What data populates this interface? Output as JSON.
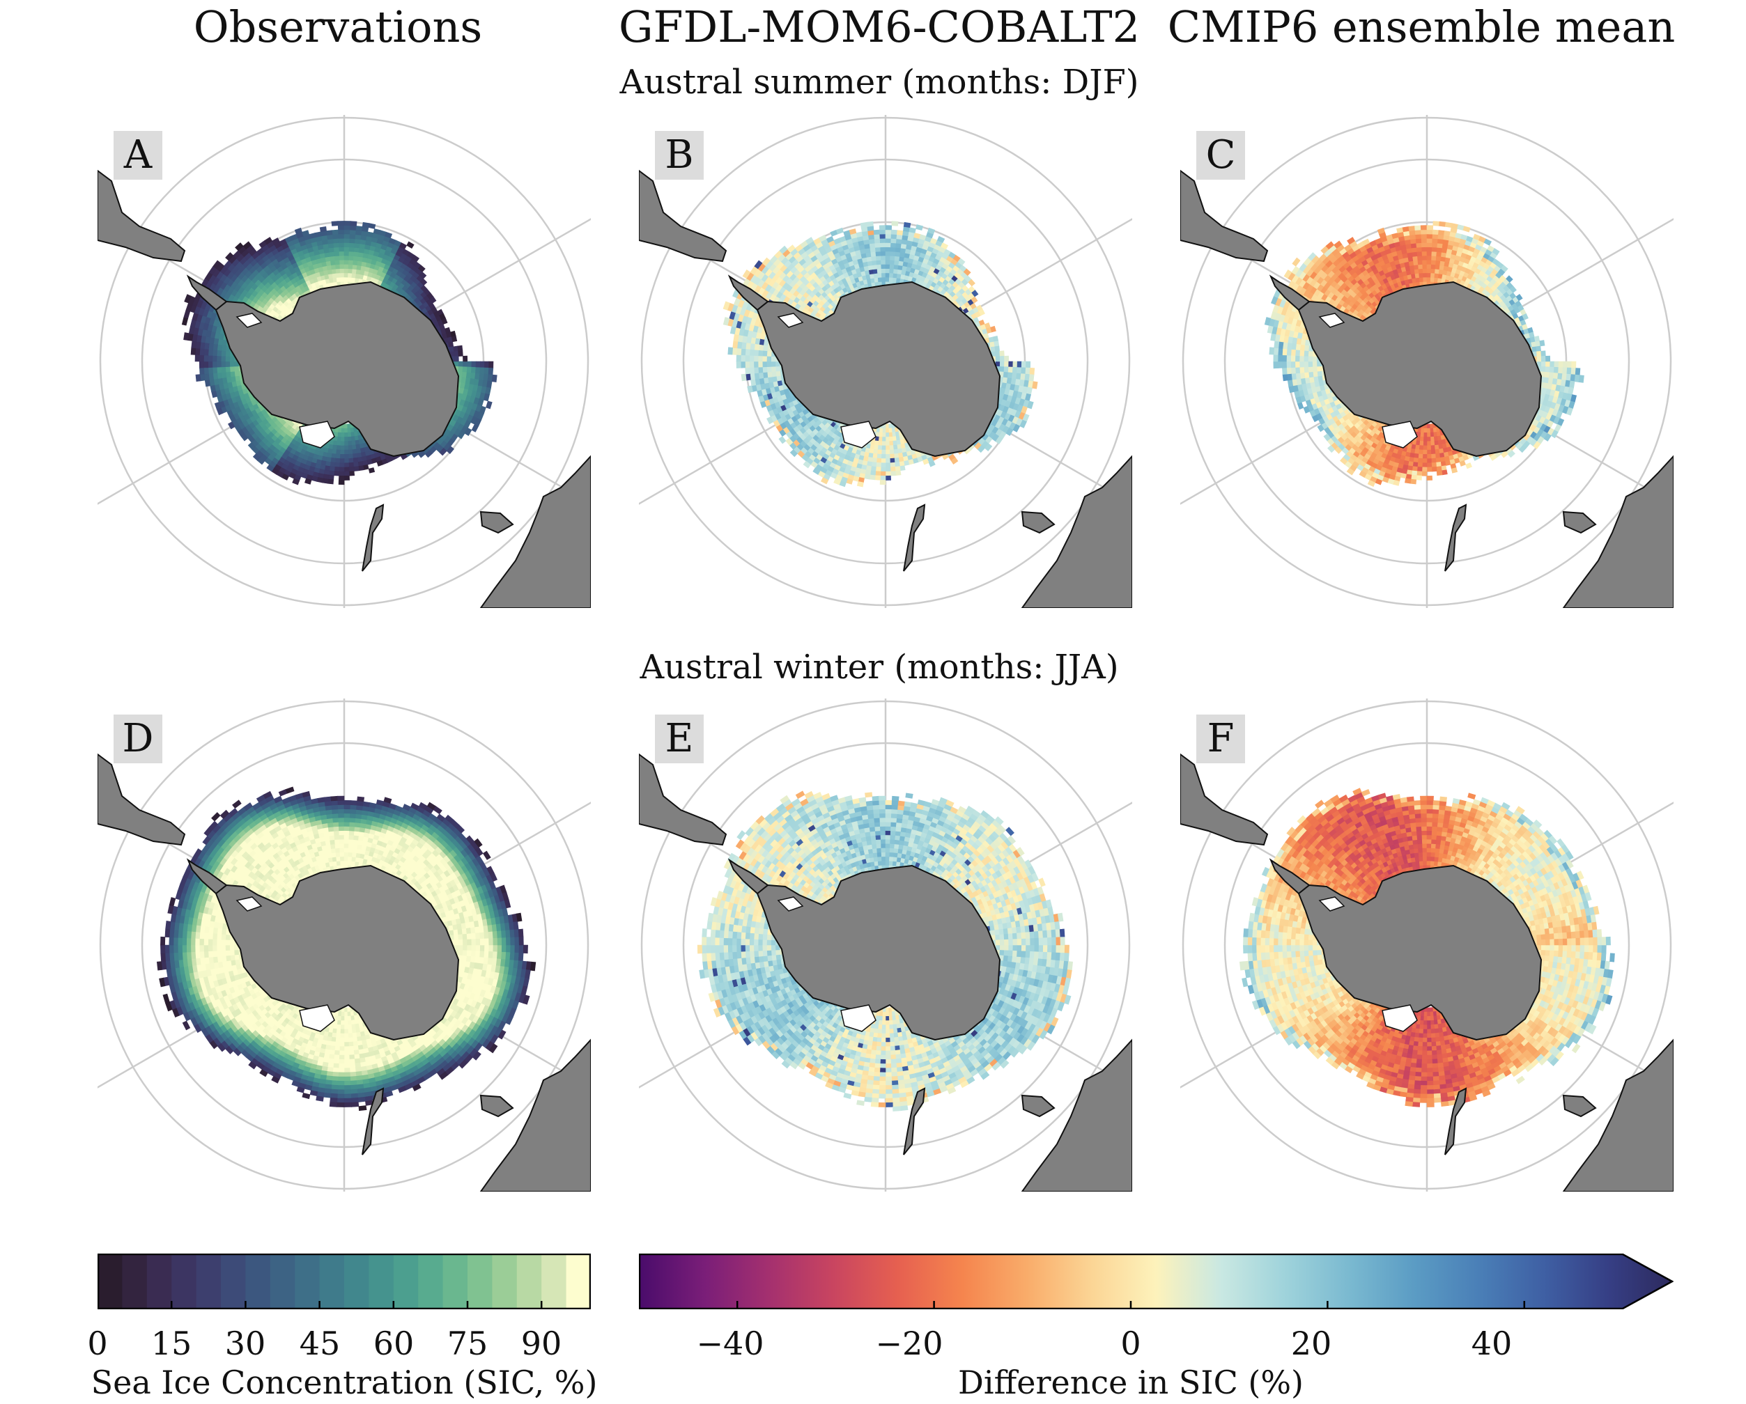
{
  "columns": [
    "Observations",
    "GFDL-MOM6-COBALT2",
    "CMIP6 ensemble mean"
  ],
  "rows": [
    {
      "title": "Austral summer (months: DJF)",
      "panels": [
        {
          "label": "A",
          "kind": "obs",
          "season": "summer"
        },
        {
          "label": "B",
          "kind": "gfdl",
          "season": "summer"
        },
        {
          "label": "C",
          "kind": "cmip",
          "season": "summer"
        }
      ]
    },
    {
      "title": "Austral winter (months: JJA)",
      "panels": [
        {
          "label": "D",
          "kind": "obs",
          "season": "winter"
        },
        {
          "label": "E",
          "kind": "gfdl",
          "season": "winter"
        },
        {
          "label": "F",
          "kind": "cmip",
          "season": "winter"
        }
      ]
    }
  ],
  "colorbars": {
    "sic": {
      "title": "Sea Ice Concentration (SIC, %)",
      "ticks": [
        "0",
        "15",
        "30",
        "45",
        "60",
        "75",
        "90"
      ],
      "tick_values": [
        0,
        15,
        30,
        45,
        60,
        75,
        90
      ],
      "range": [
        0,
        100
      ],
      "levels": 20,
      "colors": [
        "#2a1d2e",
        "#33243f",
        "#3a2c52",
        "#3c3562",
        "#3d3f6e",
        "#3d4b78",
        "#3c577f",
        "#3d6384",
        "#3e6f88",
        "#3f7b8b",
        "#41878d",
        "#45938e",
        "#4c9f8f",
        "#58ab8f",
        "#6ab78f",
        "#80c291",
        "#9bcd97",
        "#b8d9a4",
        "#d6e6b6",
        "#fdfdcf"
      ]
    },
    "diff": {
      "title": "Difference in SIC (%)",
      "ticks": [
        "−40",
        "−20",
        "0",
        "20",
        "40"
      ],
      "tick_values": [
        -40,
        -20,
        0,
        20,
        40
      ],
      "range": [
        -50,
        50
      ],
      "extend": "max",
      "colors": [
        "#4a0c6b",
        "#7a1e78",
        "#a4306f",
        "#c94560",
        "#e66050",
        "#f5854e",
        "#f9ac6a",
        "#fbd595",
        "#fdf2bb",
        "#c9e8e2",
        "#9fd3db",
        "#7ab9d0",
        "#5b9cc4",
        "#4a7fb7",
        "#3f60a4",
        "#363f85",
        "#2d2a5e"
      ]
    }
  },
  "map_colors": {
    "land": "#808080",
    "grid": "#cccccc",
    "coast": "#111111"
  }
}
